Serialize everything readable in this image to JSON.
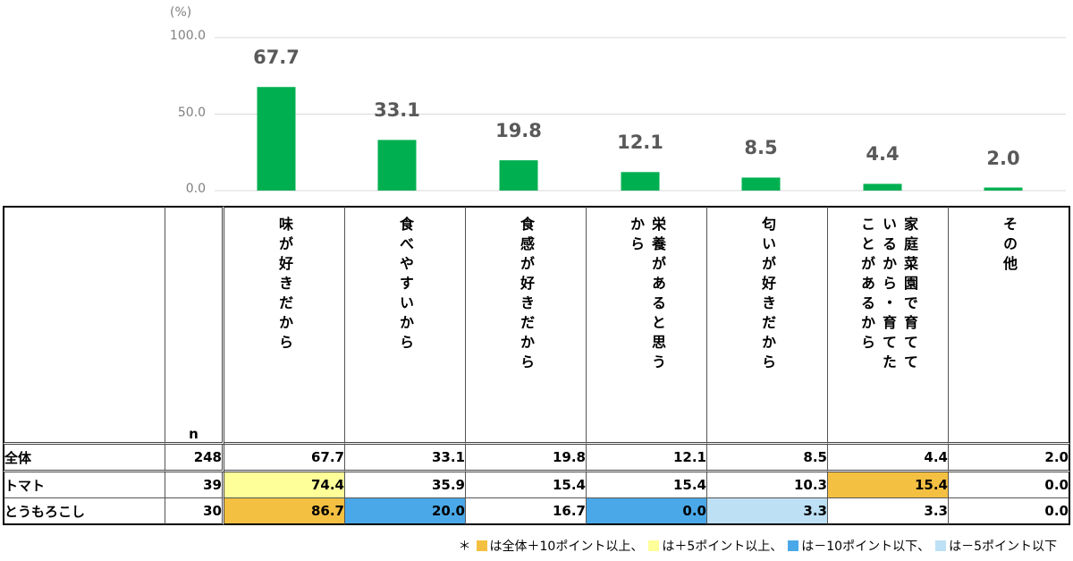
{
  "chart_data": {
    "type": "bar",
    "unit_label": "(%)",
    "y_ticks": [
      "100.0",
      "50.0",
      "0.0"
    ],
    "ylim": [
      0,
      100
    ],
    "categories": [
      "味が好きだから",
      "食べやすいから",
      "食感が好きだから",
      "栄養があると思うから",
      "匂いが好きだから",
      "家庭菜園で育てているから・育てたことがあるから",
      "その他"
    ],
    "values": [
      67.7,
      33.1,
      19.8,
      12.1,
      8.5,
      4.4,
      2.0
    ],
    "value_labels": [
      "67.7",
      "33.1",
      "19.8",
      "12.1",
      "8.5",
      "4.4",
      "2.0"
    ],
    "bar_color": "#00b050",
    "grid": true
  },
  "table": {
    "n_header": "n",
    "headers": [
      [
        "味が好きだから"
      ],
      [
        "食べやすいから"
      ],
      [
        "食感が好きだから"
      ],
      [
        "栄養があると思う",
        "から"
      ],
      [
        "匂いが好きだから"
      ],
      [
        "家庭菜園で育てて",
        "いるから・育てた",
        "ことがあるから"
      ],
      [
        "その他"
      ]
    ],
    "rows": [
      {
        "label": "全体",
        "n": "248",
        "cells": [
          {
            "v": "67.7",
            "hl": ""
          },
          {
            "v": "33.1",
            "hl": ""
          },
          {
            "v": "19.8",
            "hl": ""
          },
          {
            "v": "12.1",
            "hl": ""
          },
          {
            "v": "8.5",
            "hl": ""
          },
          {
            "v": "4.4",
            "hl": ""
          },
          {
            "v": "2.0",
            "hl": ""
          }
        ]
      },
      {
        "label": "トマト",
        "n": "39",
        "cells": [
          {
            "v": "74.4",
            "hl": "plus5"
          },
          {
            "v": "35.9",
            "hl": ""
          },
          {
            "v": "15.4",
            "hl": ""
          },
          {
            "v": "15.4",
            "hl": ""
          },
          {
            "v": "10.3",
            "hl": ""
          },
          {
            "v": "15.4",
            "hl": "plus10"
          },
          {
            "v": "0.0",
            "hl": ""
          }
        ]
      },
      {
        "label": "とうもろこし",
        "n": "30",
        "cells": [
          {
            "v": "86.7",
            "hl": "plus10"
          },
          {
            "v": "20.0",
            "hl": "minus10"
          },
          {
            "v": "16.7",
            "hl": ""
          },
          {
            "v": "0.0",
            "hl": "minus10"
          },
          {
            "v": "3.3",
            "hl": "minus5"
          },
          {
            "v": "3.3",
            "hl": ""
          },
          {
            "v": "0.0",
            "hl": ""
          }
        ]
      }
    ]
  },
  "highlight_colors": {
    "plus10": "#f4c042",
    "plus5": "#ffff99",
    "minus10": "#4aa8e8",
    "minus5": "#bde0f5"
  },
  "footnote": {
    "prefix": "＊",
    "items": [
      {
        "key": "plus10",
        "text": "は全体＋10ポイント以上、"
      },
      {
        "key": "plus5",
        "text": "は＋5ポイント以上、"
      },
      {
        "key": "minus10",
        "text": "は－10ポイント以下、"
      },
      {
        "key": "minus5",
        "text": "は－5ポイント以下"
      }
    ]
  }
}
